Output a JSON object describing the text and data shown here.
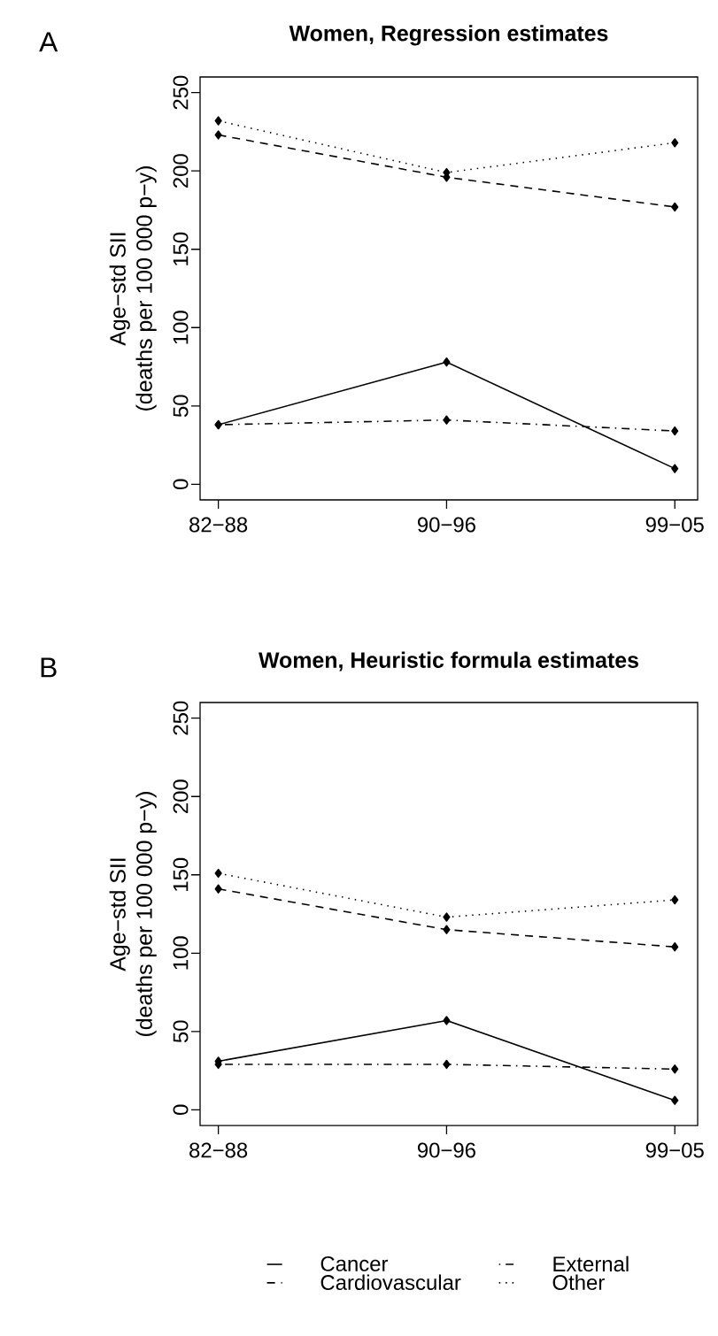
{
  "chart_data": [
    {
      "type": "line",
      "title": "Women, Regression estimates",
      "ylabel": "Age−std SII\n(deaths per 100 000 p−y)",
      "annotations": [
        "A"
      ],
      "categories": [
        "82−88",
        "90−96",
        "99−05"
      ],
      "ylim": [
        -10,
        260
      ],
      "yticks": [
        0,
        50,
        100,
        150,
        200,
        250
      ],
      "grid": false,
      "legend": false,
      "marker": "diamond",
      "series": [
        {
          "color": "#000000",
          "line_style": "solid",
          "values": [
            38,
            78,
            10
          ]
        },
        {
          "color": "#000000",
          "line_style": "dashed",
          "values": [
            223,
            196,
            177
          ]
        },
        {
          "color": "#000000",
          "line_style": "dashdot",
          "values": [
            38,
            41,
            34
          ]
        },
        {
          "color": "#000000",
          "line_style": "dotted",
          "values": [
            232,
            199,
            218
          ]
        }
      ]
    },
    {
      "type": "line",
      "title": "Women, Heuristic formula estimates",
      "ylabel": "Age−std SII\n(deaths per 100 000 p−y)",
      "annotations": [
        "B"
      ],
      "categories": [
        "82−88",
        "90−96",
        "99−05"
      ],
      "ylim": [
        -10,
        260
      ],
      "yticks": [
        0,
        50,
        100,
        150,
        200,
        250
      ],
      "grid": false,
      "legend": "bottom",
      "marker": "diamond",
      "series": [
        {
          "name": "Cancer",
          "color": "#000000",
          "line_style": "solid",
          "values": [
            31,
            57,
            6
          ]
        },
        {
          "name": "Cardiovascular",
          "color": "#000000",
          "line_style": "dashed",
          "values": [
            141,
            115,
            104
          ]
        },
        {
          "name": "External",
          "color": "#000000",
          "line_style": "dashdot",
          "values": [
            29,
            29,
            26
          ]
        },
        {
          "name": "Other",
          "color": "#000000",
          "line_style": "dotted",
          "values": [
            151,
            123,
            134
          ]
        }
      ]
    }
  ]
}
